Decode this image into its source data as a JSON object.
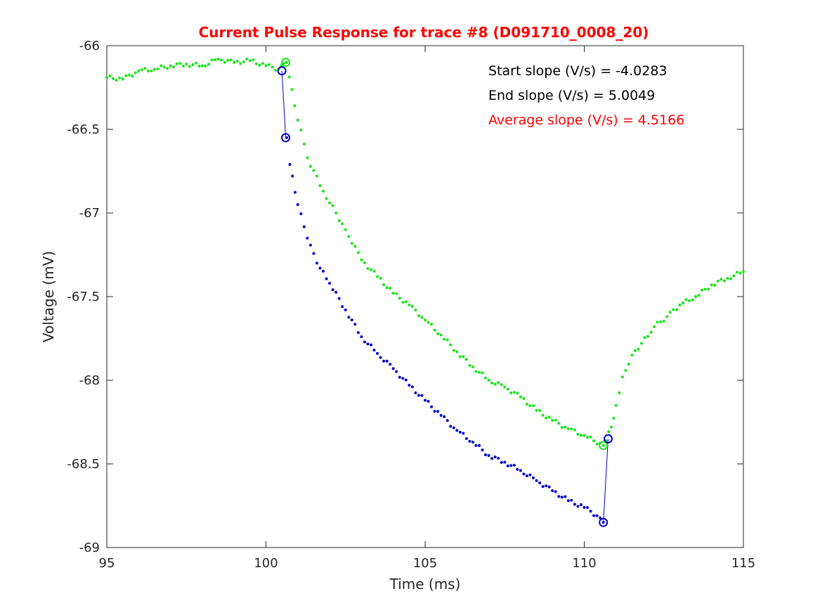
{
  "chart_data": {
    "type": "scatter",
    "title": "Current Pulse Response for trace #8 (D091710_0008_20)",
    "xlabel": "Time (ms)",
    "ylabel": "Voltage (mV)",
    "xlim": [
      95,
      115
    ],
    "ylim": [
      -69,
      -66
    ],
    "xticks": [
      "95",
      "100",
      "105",
      "110",
      "115"
    ],
    "yticks": [
      "-66",
      "-66.5",
      "-67",
      "-67.5",
      "-68",
      "-68.5",
      "-69"
    ],
    "grid": false,
    "colors": {
      "title": "#ff0000",
      "green": "#19e619",
      "blue": "#0000cc",
      "axis": "#262626",
      "annot_black": "#000000",
      "annot_red": "#ff0000"
    },
    "annotations": [
      {
        "text": "Start slope (V/s) = -4.0283",
        "color": "#000000"
      },
      {
        "text": "End slope (V/s) = 5.0049",
        "color": "#000000"
      },
      {
        "text": "Average slope (V/s) = 4.5166",
        "color": "#ff0000"
      }
    ],
    "series": [
      {
        "color": "#19e619",
        "points": [
          [
            95.0,
            -66.19
          ],
          [
            95.5,
            -66.2
          ],
          [
            96.0,
            -66.15
          ],
          [
            96.5,
            -66.14
          ],
          [
            97.0,
            -66.12
          ],
          [
            97.5,
            -66.11
          ],
          [
            98.0,
            -66.12
          ],
          [
            98.5,
            -66.08
          ],
          [
            99.0,
            -66.1
          ],
          [
            99.5,
            -66.09
          ],
          [
            100.0,
            -66.12
          ],
          [
            100.4,
            -66.14
          ],
          [
            100.65,
            -66.1
          ],
          [
            100.9,
            -66.36
          ],
          [
            101.3,
            -66.67
          ],
          [
            101.8,
            -66.87
          ],
          [
            102.5,
            -67.1
          ],
          [
            103.0,
            -67.28
          ],
          [
            103.5,
            -67.38
          ],
          [
            104.0,
            -67.48
          ],
          [
            104.5,
            -67.55
          ],
          [
            105.0,
            -67.64
          ],
          [
            105.5,
            -67.73
          ],
          [
            106.0,
            -67.83
          ],
          [
            106.5,
            -67.92
          ],
          [
            107.0,
            -68.0
          ],
          [
            107.5,
            -68.04
          ],
          [
            108.0,
            -68.1
          ],
          [
            108.5,
            -68.18
          ],
          [
            109.0,
            -68.24
          ],
          [
            109.5,
            -68.29
          ],
          [
            110.0,
            -68.33
          ],
          [
            110.6,
            -68.39
          ],
          [
            110.85,
            -68.28
          ],
          [
            111.0,
            -68.15
          ],
          [
            111.2,
            -67.98
          ],
          [
            111.5,
            -67.85
          ],
          [
            111.8,
            -67.78
          ],
          [
            112.2,
            -67.68
          ],
          [
            112.6,
            -67.62
          ],
          [
            113.0,
            -67.55
          ],
          [
            113.5,
            -67.5
          ],
          [
            114.0,
            -67.43
          ],
          [
            114.5,
            -67.39
          ],
          [
            115.0,
            -67.35
          ]
        ]
      },
      {
        "color": "#0000cc",
        "points": [
          [
            100.65,
            -66.55
          ],
          [
            100.75,
            -66.71
          ],
          [
            101.0,
            -66.95
          ],
          [
            101.3,
            -67.15
          ],
          [
            101.6,
            -67.3
          ],
          [
            102.0,
            -67.42
          ],
          [
            102.5,
            -67.58
          ],
          [
            103.0,
            -67.74
          ],
          [
            103.5,
            -67.84
          ],
          [
            104.0,
            -67.93
          ],
          [
            104.5,
            -68.03
          ],
          [
            105.0,
            -68.12
          ],
          [
            105.5,
            -68.21
          ],
          [
            106.0,
            -68.3
          ],
          [
            106.5,
            -68.37
          ],
          [
            107.0,
            -68.45
          ],
          [
            107.5,
            -68.49
          ],
          [
            108.0,
            -68.54
          ],
          [
            108.5,
            -68.6
          ],
          [
            109.0,
            -68.66
          ],
          [
            109.5,
            -68.72
          ],
          [
            110.0,
            -68.76
          ],
          [
            110.4,
            -68.81
          ],
          [
            110.6,
            -68.85
          ]
        ]
      }
    ],
    "markers": [
      {
        "color": "#19e619",
        "x": 100.62,
        "y": -66.1
      },
      {
        "color": "#19e619",
        "x": 110.6,
        "y": -68.39
      },
      {
        "color": "#0000cc",
        "x": 100.5,
        "y": -66.15
      },
      {
        "color": "#0000cc",
        "x": 100.62,
        "y": -66.55
      },
      {
        "color": "#0000cc",
        "x": 110.6,
        "y": -68.85
      },
      {
        "color": "#0000cc",
        "x": 110.75,
        "y": -68.35
      }
    ],
    "connectors": [
      {
        "color": "#0000cc",
        "from": [
          100.5,
          -66.15
        ],
        "to": [
          100.62,
          -66.55
        ]
      },
      {
        "color": "#0000cc",
        "from": [
          110.6,
          -68.85
        ],
        "to": [
          110.75,
          -68.35
        ]
      }
    ]
  }
}
